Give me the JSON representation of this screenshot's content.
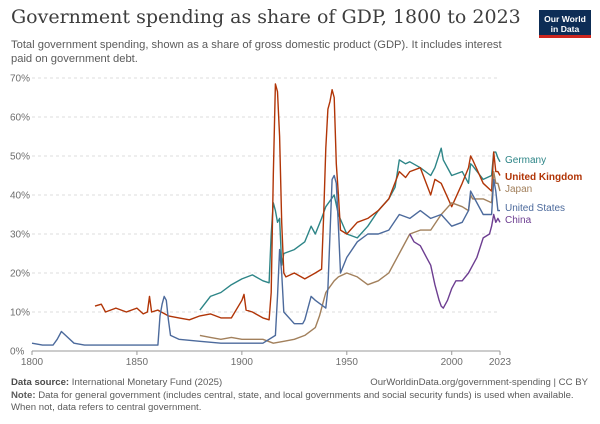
{
  "header": {
    "title": "Government spending as share of GDP, 1800 to 2023",
    "subtitle": "Total government spending, shown as a share of gross domestic product (GDP). It includes interest paid on government debt."
  },
  "logo": {
    "line1": "Our World",
    "line2": "in Data"
  },
  "footer": {
    "source_label": "Data source:",
    "source_text": "International Monetary Fund (2025)",
    "url_text": "OurWorldinData.org/government-spending | CC BY",
    "note_label": "Note:",
    "note_text": "Data for general government (includes central, state, and local governments and social security funds) is used when available. When not, data refers to central government."
  },
  "chart_data": {
    "type": "line",
    "title": "Government spending as share of GDP, 1800 to 2023",
    "xlabel": "",
    "ylabel": "",
    "xlim": [
      1800,
      2023
    ],
    "ylim": [
      0,
      70
    ],
    "x_ticks": [
      1800,
      1850,
      1900,
      1950,
      2000,
      2023
    ],
    "x_tick_labels": [
      "1800",
      "1850",
      "1900",
      "1950",
      "2000",
      "2023"
    ],
    "y_ticks": [
      0,
      10,
      20,
      30,
      40,
      50,
      60,
      70
    ],
    "y_tick_labels": [
      "0%",
      "10%",
      "20%",
      "30%",
      "40%",
      "50%",
      "60%",
      "70%"
    ],
    "grid": true,
    "legend": "right",
    "series": [
      {
        "name": "Germany",
        "color": "#2d8587",
        "x": [
          1880,
          1885,
          1890,
          1895,
          1900,
          1905,
          1910,
          1913,
          1914,
          1915,
          1916,
          1917,
          1918,
          1919,
          1920,
          1925,
          1930,
          1933,
          1935,
          1938,
          1940,
          1944,
          1946,
          1950,
          1955,
          1960,
          1965,
          1970,
          1973,
          1975,
          1978,
          1980,
          1985,
          1990,
          1992,
          1995,
          1996,
          2000,
          2005,
          2008,
          2009,
          2010,
          2015,
          2019,
          2020,
          2021,
          2022,
          2023
        ],
        "y": [
          10.5,
          14,
          15,
          17,
          18.5,
          19.5,
          18,
          17.5,
          30,
          38,
          36,
          33,
          34,
          22,
          25,
          26,
          28,
          32,
          30,
          34,
          37,
          40,
          35,
          30,
          29,
          32,
          36,
          39,
          42,
          49,
          48,
          48.5,
          47,
          45,
          47,
          52,
          49,
          45,
          46,
          43,
          48,
          47.5,
          44,
          45,
          51,
          51,
          49.5,
          48.5
        ]
      },
      {
        "name": "United Kingdom",
        "color": "#b13507",
        "x": [
          1830,
          1833,
          1835,
          1840,
          1845,
          1850,
          1853,
          1855,
          1856,
          1857,
          1860,
          1865,
          1870,
          1875,
          1880,
          1885,
          1890,
          1895,
          1900,
          1901,
          1902,
          1905,
          1910,
          1913,
          1914,
          1915,
          1916,
          1917,
          1918,
          1919,
          1920,
          1921,
          1925,
          1930,
          1935,
          1938,
          1939,
          1940,
          1941,
          1942,
          1943,
          1944,
          1945,
          1946,
          1947,
          1950,
          1955,
          1960,
          1965,
          1970,
          1975,
          1978,
          1980,
          1985,
          1990,
          1992,
          1995,
          2000,
          2005,
          2008,
          2009,
          2010,
          2015,
          2019,
          2020,
          2021,
          2022,
          2023
        ],
        "y": [
          11.5,
          12,
          10,
          11,
          10,
          11,
          9.5,
          10,
          14,
          10,
          10.5,
          9,
          8.5,
          8,
          9,
          9.5,
          8.5,
          8.5,
          13,
          14.5,
          10.5,
          10,
          8.5,
          8,
          15,
          45,
          68.5,
          66.5,
          55,
          33,
          20,
          19,
          20,
          18.5,
          20,
          21,
          35,
          52,
          62,
          64,
          67,
          65,
          48,
          40,
          31,
          30,
          33,
          34,
          36,
          39,
          46,
          44.5,
          46,
          47,
          40,
          44,
          43,
          37,
          43,
          47,
          50,
          49,
          43,
          41,
          51,
          46,
          46,
          45
        ]
      },
      {
        "name": "Japan",
        "color": "#a2805c",
        "x": [
          1880,
          1885,
          1890,
          1895,
          1900,
          1905,
          1910,
          1915,
          1920,
          1925,
          1930,
          1935,
          1937,
          1938,
          1940,
          1944,
          1946,
          1950,
          1955,
          1960,
          1965,
          1970,
          1975,
          1980,
          1985,
          1990,
          1995,
          2000,
          2005,
          2008,
          2009,
          2010,
          2015,
          2019,
          2020,
          2021,
          2022,
          2023
        ],
        "y": [
          4,
          3.5,
          3,
          3.5,
          3,
          3,
          3,
          2,
          2.5,
          3,
          4,
          6,
          9,
          11,
          15,
          18,
          19,
          20,
          19,
          17,
          18,
          20,
          25,
          30,
          31,
          31,
          35,
          38,
          37,
          36,
          40,
          39,
          39,
          38,
          46,
          43,
          43,
          41
        ]
      },
      {
        "name": "United States",
        "color": "#4c6a9c",
        "x": [
          1800,
          1805,
          1810,
          1812,
          1814,
          1816,
          1820,
          1825,
          1830,
          1840,
          1850,
          1860,
          1861,
          1862,
          1863,
          1864,
          1865,
          1866,
          1870,
          1880,
          1890,
          1900,
          1910,
          1916,
          1917,
          1918,
          1919,
          1920,
          1925,
          1929,
          1930,
          1933,
          1935,
          1940,
          1941,
          1942,
          1943,
          1944,
          1945,
          1946,
          1947,
          1950,
          1955,
          1960,
          1965,
          1970,
          1975,
          1980,
          1985,
          1990,
          1995,
          2000,
          2005,
          2008,
          2009,
          2010,
          2015,
          2019,
          2020,
          2021,
          2022,
          2023
        ],
        "y": [
          2,
          1.5,
          1.5,
          3,
          5,
          4,
          2,
          1.5,
          1.5,
          1.5,
          1.5,
          1.5,
          9,
          12,
          14,
          13,
          8,
          4,
          3,
          2.5,
          2,
          2,
          2,
          4,
          14,
          26,
          20,
          10,
          7,
          7,
          8,
          14,
          13,
          11,
          16,
          30,
          44,
          45,
          43,
          32,
          20,
          24,
          28,
          30,
          30,
          31,
          35,
          34,
          36,
          34,
          35,
          32,
          33,
          36,
          41,
          40,
          35,
          35,
          44,
          41,
          36,
          36
        ]
      },
      {
        "name": "China",
        "color": "#6d3e91",
        "x": [
          1980,
          1982,
          1985,
          1988,
          1990,
          1992,
          1994,
          1995,
          1996,
          1998,
          2000,
          2002,
          2005,
          2008,
          2010,
          2012,
          2015,
          2018,
          2019,
          2020,
          2021,
          2022,
          2023
        ],
        "y": [
          30,
          28,
          27,
          24,
          22,
          17,
          13,
          11.5,
          11,
          13,
          16,
          18,
          18,
          20,
          22,
          24,
          29,
          30,
          32,
          35,
          33,
          34,
          33
        ]
      }
    ]
  }
}
